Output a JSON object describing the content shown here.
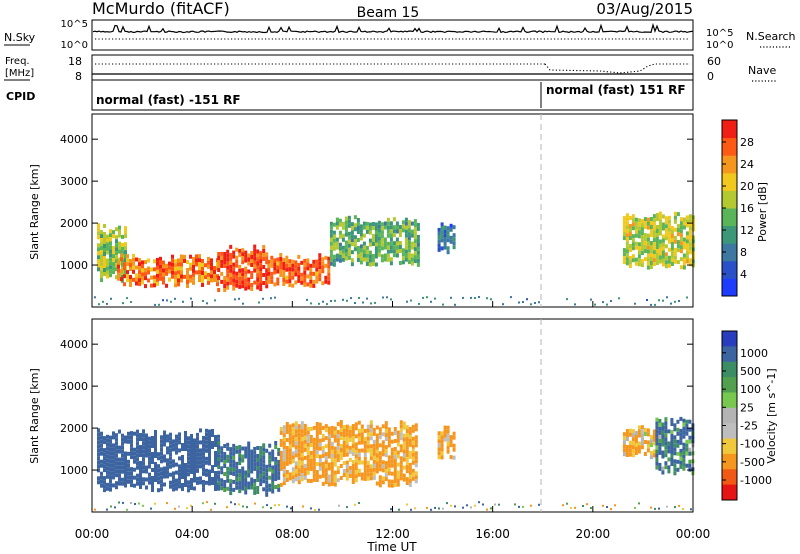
{
  "header": {
    "station": "McMurdo (fitACF)",
    "beam": "Beam 15",
    "date": "03/Aug/2015"
  },
  "top_panels": {
    "nsky": {
      "label": "N.Sky",
      "left_ticks": [
        "10^5",
        "10^0"
      ],
      "right_ticks": [
        "10^5",
        "10^0"
      ],
      "right_label": "N.Search"
    },
    "freq": {
      "label_line1": "Freq.",
      "label_line2": "[MHz]",
      "left_ticks": [
        "18",
        "8"
      ],
      "right_ticks": [
        "60",
        "0"
      ],
      "right_label": "Nave"
    },
    "cpid": {
      "label": "CPID",
      "segments": [
        {
          "text": "normal (fast) -151 RF",
          "start_hour": 0
        },
        {
          "text": "normal (fast) 151 RF",
          "start_hour": 18
        }
      ]
    }
  },
  "time_axis": {
    "ticks": [
      "00:00",
      "04:00",
      "08:00",
      "12:00",
      "16:00",
      "20:00",
      "00:00"
    ],
    "label": "Time UT"
  },
  "colors": {
    "power_scale": [
      "#1e3cff",
      "#2a50c8",
      "#3c78a0",
      "#3c9678",
      "#5ab45a",
      "#b4c832",
      "#f0c81e",
      "#f5961e",
      "#ff5a14",
      "#f01e14"
    ],
    "velocity_scale": [
      "#e61414",
      "#f05a14",
      "#f5961e",
      "#f0c83c",
      "#bebebe",
      "#b4b4b4",
      "#78c850",
      "#50a050",
      "#3c8c64",
      "#3c64a0",
      "#283cbe"
    ],
    "missing": "#ffffff",
    "dashed_marker": "#b4b4b4"
  },
  "chart_data": [
    {
      "type": "heatmap",
      "title": "",
      "ylabel": "Slant Range [km]",
      "xlabel": "",
      "x_range_hours": [
        0,
        24
      ],
      "y_range_km": [
        0,
        4600
      ],
      "y_ticks": [
        "1000",
        "2000",
        "3000",
        "4000"
      ],
      "colorbar": {
        "label": "Power [dB]",
        "range": [
          0,
          32
        ],
        "ticks": [
          "4",
          "8",
          "12",
          "16",
          "20",
          "24",
          "28"
        ]
      },
      "description_regions": [
        {
          "t0": 0.2,
          "t1": 1.3,
          "r0": 700,
          "r1": 1900,
          "value": 16
        },
        {
          "t0": 1.0,
          "t1": 5.0,
          "r0": 600,
          "r1": 1200,
          "value": 26
        },
        {
          "t0": 5.0,
          "t1": 7.0,
          "r0": 500,
          "r1": 1400,
          "value": 28
        },
        {
          "t0": 7.0,
          "t1": 9.5,
          "r0": 600,
          "r1": 1200,
          "value": 27
        },
        {
          "t0": 9.5,
          "t1": 13.0,
          "r0": 1100,
          "r1": 2100,
          "value": 14
        },
        {
          "t0": 13.8,
          "t1": 14.5,
          "r0": 1400,
          "r1": 2000,
          "value": 8
        },
        {
          "t0": 21.2,
          "t1": 24.0,
          "r0": 1000,
          "r1": 2200,
          "value": 18
        }
      ],
      "marker_hour": 18
    },
    {
      "type": "heatmap",
      "title": "",
      "ylabel": "Slant Range [km]",
      "xlabel": "Time UT",
      "x_range_hours": [
        0,
        24
      ],
      "y_range_km": [
        0,
        4600
      ],
      "y_ticks": [
        "1000",
        "2000",
        "3000",
        "4000"
      ],
      "colorbar": {
        "label": "Velocity [m s^-1]",
        "ticks": [
          "1000",
          "500",
          "100",
          "25",
          "-25",
          "-100",
          "-500",
          "-1000"
        ]
      },
      "description_regions": [
        {
          "t0": 0.2,
          "t1": 5.0,
          "r0": 600,
          "r1": 1900,
          "value": 300
        },
        {
          "t0": 5.0,
          "t1": 7.5,
          "r0": 500,
          "r1": 1600,
          "value": 150
        },
        {
          "t0": 7.5,
          "t1": 13.0,
          "r0": 700,
          "r1": 2100,
          "value": -150
        },
        {
          "t0": 13.8,
          "t1": 14.5,
          "r0": 1400,
          "r1": 2000,
          "value": -150
        },
        {
          "t0": 21.2,
          "t1": 22.5,
          "r0": 1400,
          "r1": 2000,
          "value": -120
        },
        {
          "t0": 22.5,
          "t1": 24.0,
          "r0": 1000,
          "r1": 2200,
          "value": 120
        }
      ],
      "marker_hour": 18
    }
  ]
}
